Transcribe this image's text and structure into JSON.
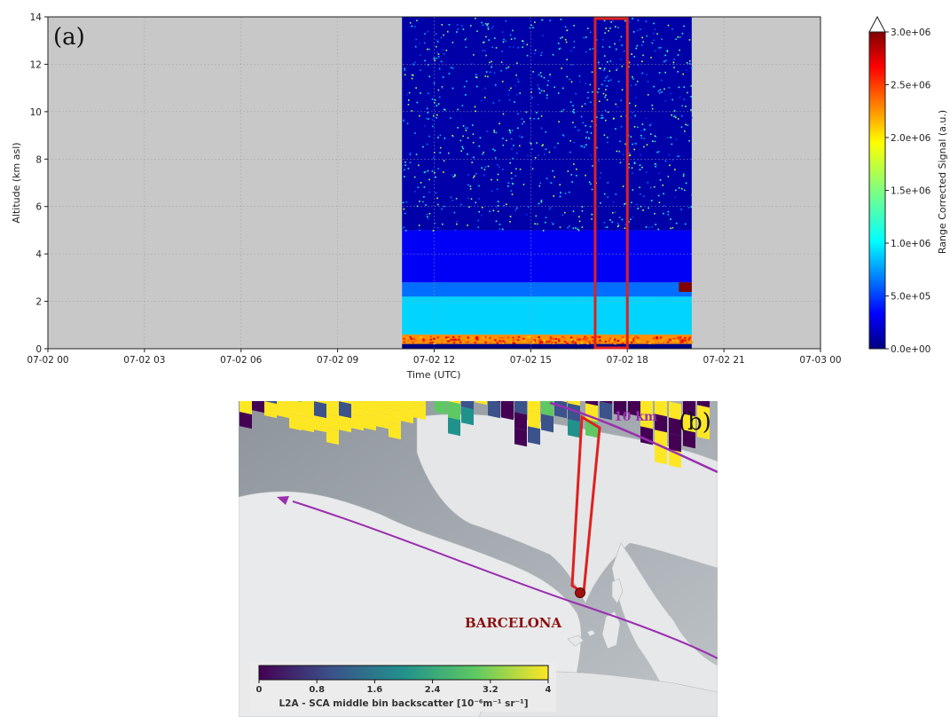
{
  "panel_a": {
    "label": "(a)",
    "xlabel": "Time (UTC)",
    "ylabel": "Altitude (km asl)",
    "x_ticks": [
      "07-02 00",
      "07-02 03",
      "07-02 06",
      "07-02 09",
      "07-02 12",
      "07-02 15",
      "07-02 18",
      "07-02 21",
      "07-03 00"
    ],
    "y_ticks": [
      "0",
      "2",
      "4",
      "6",
      "8",
      "10",
      "12",
      "14"
    ],
    "colorbar": {
      "label": "Range Corrected Signal (a.u.)",
      "ticks": [
        "0.0e+00",
        "5.0e+05",
        "1.0e+06",
        "1.5e+06",
        "2.0e+06",
        "2.5e+06",
        "3.0e+06"
      ],
      "colormap": "jet",
      "extend": "max"
    }
  },
  "panel_b": {
    "label": "(b)",
    "distance_label": "10 km",
    "city_label": "BARCELONA",
    "colorbar": {
      "ticks": [
        "0",
        "0.8",
        "1.6",
        "2.4",
        "3.2",
        "4"
      ],
      "label": "L2A - SCA middle bin backscatter [10⁻⁶m⁻¹ sr⁻¹]",
      "colormap": "viridis"
    }
  },
  "colors": {
    "no_data": "#c8c8c8",
    "highlight_box": "#e02020",
    "satellite_track": "#9a2fb0",
    "city_marker": "#a01010"
  },
  "chart_data": [
    {
      "type": "heatmap",
      "title": "",
      "xlabel": "Time (UTC)",
      "ylabel": "Altitude (km asl)",
      "x_range": [
        "07-02 00",
        "07-03 00"
      ],
      "ylim": [
        0,
        14
      ],
      "data_window": {
        "start": "07-02 11:00",
        "end": "07-02 20:00"
      },
      "highlight_window": {
        "start": "07-02 17:00",
        "end": "07-02 18:00",
        "altitude": [
          0,
          14
        ]
      },
      "colorbar": {
        "label": "Range Corrected Signal (a.u.)",
        "min": 0,
        "max": 3000000
      },
      "layers": [
        {
          "altitude_km": [
            0.2,
            0.6
          ],
          "signal": 2200000
        },
        {
          "altitude_km": [
            0.6,
            2.2
          ],
          "signal": 1000000
        },
        {
          "altitude_km": [
            2.2,
            2.8
          ],
          "signal": 700000
        },
        {
          "altitude_km": [
            2.8,
            5.0
          ],
          "signal": 350000
        },
        {
          "altitude_km": [
            5.0,
            14.0
          ],
          "signal": 120000
        }
      ],
      "grid": true
    },
    {
      "type": "heatmap",
      "title": "",
      "colorbar": {
        "label": "L2A - SCA middle bin backscatter [10⁻⁶m⁻¹ sr⁻¹]",
        "min": 0,
        "max": 4
      },
      "annotations": [
        "10 km",
        "BARCELONA"
      ]
    }
  ]
}
